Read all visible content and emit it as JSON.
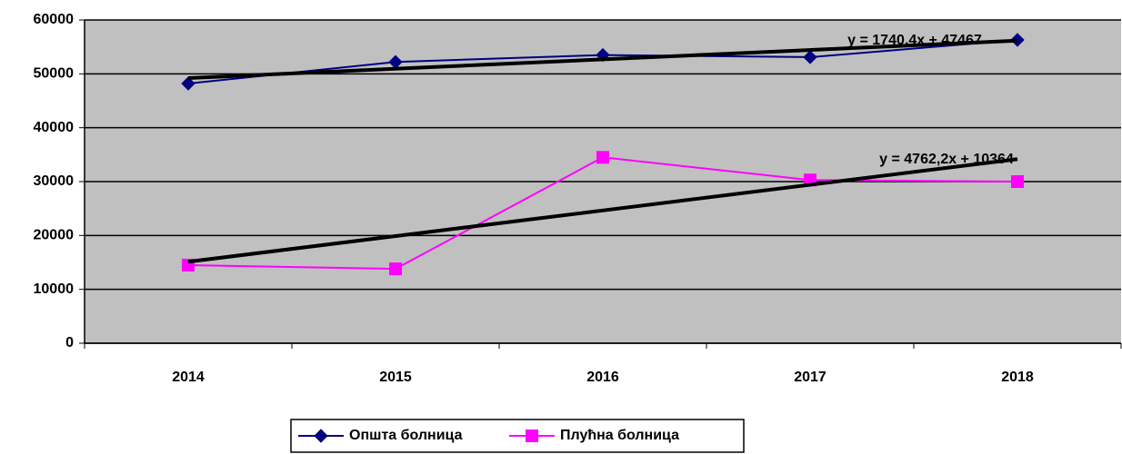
{
  "chart_data": {
    "type": "line",
    "categories": [
      "2014",
      "2015",
      "2016",
      "2017",
      "2018"
    ],
    "series": [
      {
        "name": "Општа болница",
        "color": "#000080",
        "marker": "diamond",
        "values": [
          48200,
          52200,
          53500,
          53100,
          56300
        ]
      },
      {
        "name": "Плућна болница",
        "color": "#ff00ff",
        "marker": "square",
        "values": [
          14500,
          13800,
          34500,
          30300,
          30000
        ]
      }
    ],
    "trendlines": [
      {
        "label": "y = 1740,4x + 47467",
        "slope": 1740.4,
        "intercept": 47467,
        "color": "#000000"
      },
      {
        "label": "y = 4762,2x + 10364",
        "slope": 4762.2,
        "intercept": 10364,
        "color": "#000000"
      }
    ],
    "ylim": [
      0,
      60000
    ],
    "yticks": [
      0,
      10000,
      20000,
      30000,
      40000,
      50000,
      60000
    ],
    "grid": true,
    "plot_background": "#c0c0c0",
    "legend": "bottom"
  }
}
